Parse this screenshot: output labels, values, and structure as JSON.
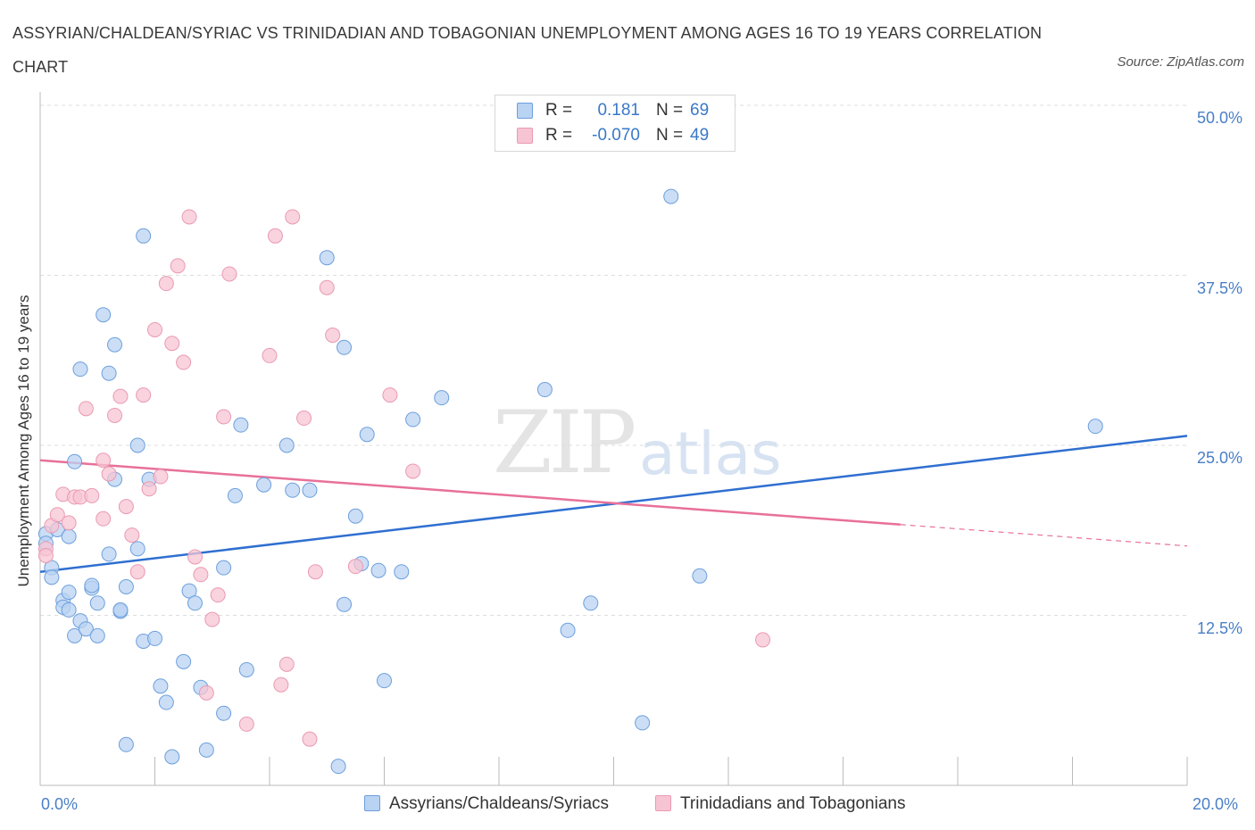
{
  "title": "ASSYRIAN/CHALDEAN/SYRIAC VS TRINIDADIAN AND TOBAGONIAN UNEMPLOYMENT AMONG AGES 16 TO 19 YEARS CORRELATION CHART",
  "source": "Source: ZipAtlas.com",
  "watermark": {
    "zip": "ZIP",
    "atlas": "atlas"
  },
  "legend": {
    "r_label": "R =",
    "n_label": "N =",
    "series1": {
      "r": "0.181",
      "n": "69"
    },
    "series2": {
      "r": "-0.070",
      "n": "49"
    }
  },
  "colors": {
    "blue_fill": "#b9d3f3",
    "blue_stroke": "#6d9fdc",
    "blue_line": "#2f6fd0",
    "pink_fill": "#f7c4d3",
    "pink_stroke": "#ea9ab3",
    "pink_line": "#e8709a",
    "tick_text": "#4a7fc7",
    "grid": "#dddddd"
  },
  "chart_data": {
    "type": "scatter",
    "title": "ASSYRIAN/CHALDEAN/SYRIAC VS TRINIDADIAN AND TOBAGONIAN UNEMPLOYMENT AMONG AGES 16 TO 19 YEARS CORRELATION CHART",
    "xlabel": "",
    "ylabel": "Unemployment Among Ages 16 to 19 years",
    "xlim": [
      0,
      20
    ],
    "ylim": [
      0,
      50
    ],
    "x_ticks": [
      "0.0%",
      "20.0%"
    ],
    "y_ticks": [
      {
        "value": 12.5,
        "label": "12.5%"
      },
      {
        "value": 25.0,
        "label": "25.0%"
      },
      {
        "value": 37.5,
        "label": "37.5%"
      },
      {
        "value": 50.0,
        "label": "50.0%"
      }
    ],
    "series": [
      {
        "name": "Assyrians/Chaldeans/Syriacs",
        "r": 0.181,
        "n": 69,
        "trend": {
          "x": [
            0,
            20
          ],
          "y": [
            15.7,
            25.7
          ],
          "dashed_from_x": null
        },
        "points": [
          [
            0.1,
            18.5
          ],
          [
            0.1,
            17.8
          ],
          [
            0.2,
            16.0
          ],
          [
            0.2,
            15.3
          ],
          [
            0.3,
            18.8
          ],
          [
            0.4,
            13.6
          ],
          [
            0.4,
            13.1
          ],
          [
            0.5,
            12.9
          ],
          [
            0.5,
            18.3
          ],
          [
            0.5,
            14.2
          ],
          [
            0.6,
            11.0
          ],
          [
            0.6,
            23.8
          ],
          [
            0.7,
            12.1
          ],
          [
            0.7,
            30.6
          ],
          [
            0.8,
            11.5
          ],
          [
            0.9,
            14.5
          ],
          [
            0.9,
            14.7
          ],
          [
            1.0,
            13.4
          ],
          [
            1.0,
            11.0
          ],
          [
            1.1,
            34.6
          ],
          [
            1.2,
            17.0
          ],
          [
            1.2,
            30.3
          ],
          [
            1.3,
            32.4
          ],
          [
            1.3,
            22.5
          ],
          [
            1.4,
            12.8
          ],
          [
            1.4,
            12.9
          ],
          [
            1.5,
            3.0
          ],
          [
            1.5,
            14.6
          ],
          [
            1.7,
            25.0
          ],
          [
            1.7,
            17.4
          ],
          [
            1.8,
            10.6
          ],
          [
            1.8,
            40.4
          ],
          [
            1.9,
            22.5
          ],
          [
            2.0,
            10.8
          ],
          [
            2.1,
            7.3
          ],
          [
            2.2,
            6.1
          ],
          [
            2.3,
            2.1
          ],
          [
            2.5,
            9.1
          ],
          [
            2.6,
            14.3
          ],
          [
            2.7,
            13.4
          ],
          [
            2.8,
            7.2
          ],
          [
            2.9,
            2.6
          ],
          [
            3.2,
            5.3
          ],
          [
            3.2,
            16.0
          ],
          [
            3.4,
            21.3
          ],
          [
            3.5,
            26.5
          ],
          [
            3.6,
            8.5
          ],
          [
            3.9,
            22.1
          ],
          [
            4.3,
            25.0
          ],
          [
            4.4,
            21.7
          ],
          [
            4.7,
            21.7
          ],
          [
            5.0,
            38.8
          ],
          [
            5.2,
            1.4
          ],
          [
            5.3,
            32.2
          ],
          [
            5.3,
            13.3
          ],
          [
            5.5,
            19.8
          ],
          [
            5.6,
            16.3
          ],
          [
            5.7,
            25.8
          ],
          [
            5.9,
            15.8
          ],
          [
            6.0,
            7.7
          ],
          [
            6.3,
            15.7
          ],
          [
            6.5,
            26.9
          ],
          [
            7.0,
            28.5
          ],
          [
            8.8,
            29.1
          ],
          [
            9.2,
            11.4
          ],
          [
            9.6,
            13.4
          ],
          [
            10.5,
            4.6
          ],
          [
            11.0,
            43.3
          ],
          [
            11.5,
            15.4
          ],
          [
            18.4,
            26.4
          ]
        ]
      },
      {
        "name": "Trinidadians and Tobagonians",
        "r": -0.07,
        "n": 49,
        "trend": {
          "x": [
            0,
            20
          ],
          "y": [
            23.9,
            17.6
          ],
          "dashed_from_x": 15.0
        },
        "points": [
          [
            0.1,
            17.4
          ],
          [
            0.1,
            16.9
          ],
          [
            0.2,
            19.1
          ],
          [
            0.3,
            19.9
          ],
          [
            0.4,
            21.4
          ],
          [
            0.5,
            19.3
          ],
          [
            0.6,
            21.2
          ],
          [
            0.7,
            21.2
          ],
          [
            0.8,
            27.7
          ],
          [
            0.9,
            21.3
          ],
          [
            1.1,
            19.6
          ],
          [
            1.1,
            23.9
          ],
          [
            1.2,
            22.9
          ],
          [
            1.3,
            27.2
          ],
          [
            1.4,
            28.6
          ],
          [
            1.5,
            20.5
          ],
          [
            1.6,
            18.4
          ],
          [
            1.7,
            15.7
          ],
          [
            1.8,
            28.7
          ],
          [
            1.9,
            21.8
          ],
          [
            2.0,
            33.5
          ],
          [
            2.1,
            22.7
          ],
          [
            2.2,
            36.9
          ],
          [
            2.3,
            32.5
          ],
          [
            2.4,
            38.2
          ],
          [
            2.5,
            31.1
          ],
          [
            2.6,
            41.8
          ],
          [
            2.7,
            16.8
          ],
          [
            2.8,
            15.5
          ],
          [
            2.9,
            6.8
          ],
          [
            3.0,
            12.2
          ],
          [
            3.1,
            14.0
          ],
          [
            3.2,
            27.1
          ],
          [
            3.3,
            37.6
          ],
          [
            3.6,
            4.5
          ],
          [
            4.0,
            31.6
          ],
          [
            4.1,
            40.4
          ],
          [
            4.2,
            7.4
          ],
          [
            4.3,
            8.9
          ],
          [
            4.4,
            41.8
          ],
          [
            4.6,
            27.0
          ],
          [
            4.7,
            3.4
          ],
          [
            4.8,
            15.7
          ],
          [
            5.0,
            36.6
          ],
          [
            5.1,
            33.1
          ],
          [
            5.5,
            16.1
          ],
          [
            6.1,
            28.7
          ],
          [
            6.5,
            23.1
          ],
          [
            12.6,
            10.7
          ]
        ]
      }
    ]
  },
  "bottom_legend": {
    "series1": "Assyrians/Chaldeans/Syriacs",
    "series2": "Trinidadians and Tobagonians"
  }
}
